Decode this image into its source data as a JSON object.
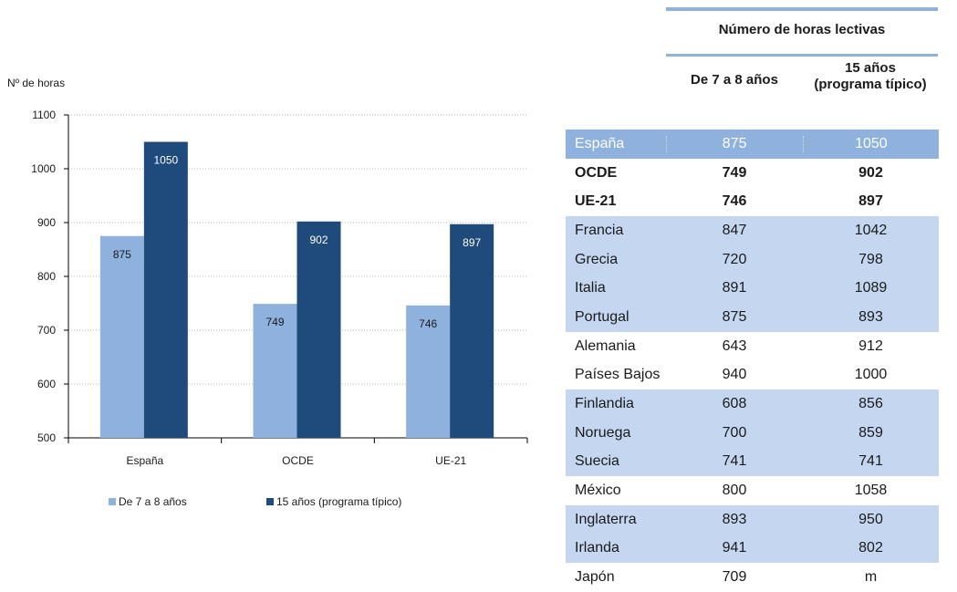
{
  "chart_data": {
    "type": "bar",
    "ylabel": "Nº de horas",
    "ylim": [
      500,
      1100
    ],
    "yticks": [
      500,
      600,
      700,
      800,
      900,
      1000,
      1100
    ],
    "categories": [
      "España",
      "OCDE",
      "UE-21"
    ],
    "series": [
      {
        "name": "De 7 a 8 años",
        "values": [
          875,
          749,
          746
        ],
        "color": "#8eb1de",
        "label_color": "#1a1a1a"
      },
      {
        "name": "15 años (programa típico)",
        "values": [
          1050,
          902,
          897
        ],
        "color": "#1f4a7c",
        "label_color": "#ffffff"
      }
    ],
    "grid": true,
    "legend_position": "bottom"
  },
  "table": {
    "group_header": "Número de horas lectivas",
    "col1_header": "De 7 a 8 años",
    "col2_header_line1": "15 años",
    "col2_header_line2": "(programa típico)",
    "rows": [
      {
        "label": "España",
        "v1": "875",
        "v2": "1050",
        "style": "hl"
      },
      {
        "label": "OCDE",
        "v1": "749",
        "v2": "902",
        "style": "bold"
      },
      {
        "label": "UE-21",
        "v1": "746",
        "v2": "897",
        "style": "bold"
      },
      {
        "label": "Francia",
        "v1": "847",
        "v2": "1042",
        "style": "shaded"
      },
      {
        "label": "Grecia",
        "v1": "720",
        "v2": "798",
        "style": "shaded"
      },
      {
        "label": "Italia",
        "v1": "891",
        "v2": "1089",
        "style": "shaded"
      },
      {
        "label": "Portugal",
        "v1": "875",
        "v2": "893",
        "style": "shaded"
      },
      {
        "label": "Alemania",
        "v1": "643",
        "v2": "912",
        "style": ""
      },
      {
        "label": "Países Bajos",
        "v1": "940",
        "v2": "1000",
        "style": ""
      },
      {
        "label": "Finlandia",
        "v1": "608",
        "v2": "856",
        "style": "shaded"
      },
      {
        "label": "Noruega",
        "v1": "700",
        "v2": "859",
        "style": "shaded"
      },
      {
        "label": "Suecia",
        "v1": "741",
        "v2": "741",
        "style": "shaded"
      },
      {
        "label": "México",
        "v1": "800",
        "v2": "1058",
        "style": ""
      },
      {
        "label": "Inglaterra",
        "v1": "893",
        "v2": "950",
        "style": "shaded"
      },
      {
        "label": "Irlanda",
        "v1": "941",
        "v2": "802",
        "style": "shaded"
      },
      {
        "label": "Japón",
        "v1": "709",
        "v2": "m",
        "style": ""
      }
    ]
  }
}
